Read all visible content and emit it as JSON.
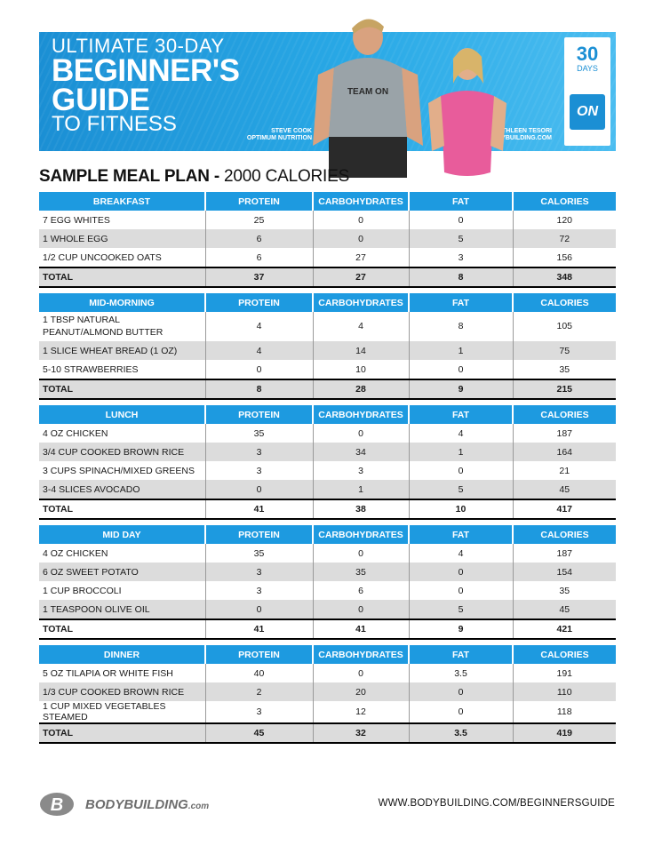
{
  "banner": {
    "title_line1": "ULTIMATE 30-DAY",
    "title_line2": "BEGINNER'S",
    "title_line3": "GUIDE",
    "title_line4": "TO FITNESS",
    "person1_name": "STEVE COOK",
    "person1_org": "OPTIMUM NUTRITION",
    "person2_name": "KATHLEEN TESORI",
    "person2_org": "BODYBUILDING.COM",
    "shirt_text": "TEAM ON",
    "badge_number": "30",
    "badge_label": "DAYS",
    "badge_logo": "ON"
  },
  "plan": {
    "title": "SAMPLE MEAL PLAN -",
    "subtitle": "2000 CALORIES"
  },
  "columns": [
    "PROTEIN",
    "CARBOHYDRATES",
    "FAT",
    "CALORIES"
  ],
  "meals": [
    {
      "name": "BREAKFAST",
      "items": [
        {
          "food": "7 EGG WHITES",
          "protein": "25",
          "carbs": "0",
          "fat": "0",
          "calories": "120"
        },
        {
          "food": "1 WHOLE EGG",
          "protein": "6",
          "carbs": "0",
          "fat": "5",
          "calories": "72"
        },
        {
          "food": "1/2 CUP UNCOOKED OATS",
          "protein": "6",
          "carbs": "27",
          "fat": "3",
          "calories": "156"
        }
      ],
      "total": {
        "label": "TOTAL",
        "protein": "37",
        "carbs": "27",
        "fat": "8",
        "calories": "348"
      }
    },
    {
      "name": "MID-MORNING",
      "items": [
        {
          "food": "1 TBSP NATURAL PEANUT/ALMOND BUTTER",
          "protein": "4",
          "carbs": "4",
          "fat": "8",
          "calories": "105"
        },
        {
          "food": "1 SLICE WHEAT BREAD (1 OZ)",
          "protein": "4",
          "carbs": "14",
          "fat": "1",
          "calories": "75"
        },
        {
          "food": "5-10 STRAWBERRIES",
          "protein": "0",
          "carbs": "10",
          "fat": "0",
          "calories": "35"
        }
      ],
      "total": {
        "label": "TOTAL",
        "protein": "8",
        "carbs": "28",
        "fat": "9",
        "calories": "215"
      }
    },
    {
      "name": "LUNCH",
      "items": [
        {
          "food": "4 OZ CHICKEN",
          "protein": "35",
          "carbs": "0",
          "fat": "4",
          "calories": "187"
        },
        {
          "food": "3/4 CUP COOKED BROWN RICE",
          "protein": "3",
          "carbs": "34",
          "fat": "1",
          "calories": "164"
        },
        {
          "food": "3 CUPS SPINACH/MIXED GREENS",
          "protein": "3",
          "carbs": "3",
          "fat": "0",
          "calories": "21"
        },
        {
          "food": "3-4 SLICES AVOCADO",
          "protein": "0",
          "carbs": "1",
          "fat": "5",
          "calories": "45"
        }
      ],
      "total": {
        "label": "TOTAL",
        "protein": "41",
        "carbs": "38",
        "fat": "10",
        "calories": "417"
      }
    },
    {
      "name": "MID DAY",
      "items": [
        {
          "food": "4 OZ CHICKEN",
          "protein": "35",
          "carbs": "0",
          "fat": "4",
          "calories": "187"
        },
        {
          "food": "6 OZ  SWEET POTATO",
          "protein": "3",
          "carbs": "35",
          "fat": "0",
          "calories": "154"
        },
        {
          "food": "1 CUP BROCCOLI",
          "protein": "3",
          "carbs": "6",
          "fat": "0",
          "calories": "35"
        },
        {
          "food": "1 TEASPOON OLIVE OIL",
          "protein": "0",
          "carbs": "0",
          "fat": "5",
          "calories": "45"
        }
      ],
      "total": {
        "label": "TOTAL",
        "protein": "41",
        "carbs": "41",
        "fat": "9",
        "calories": "421"
      }
    },
    {
      "name": "DINNER",
      "items": [
        {
          "food": "5 OZ TILAPIA OR WHITE FISH",
          "protein": "40",
          "carbs": "0",
          "fat": "3.5",
          "calories": "191"
        },
        {
          "food": "1/3 CUP COOKED BROWN RICE",
          "protein": "2",
          "carbs": "20",
          "fat": "0",
          "calories": "110"
        },
        {
          "food": "1 CUP MIXED VEGETABLES STEAMED",
          "protein": "3",
          "carbs": "12",
          "fat": "0",
          "calories": "118"
        }
      ],
      "total": {
        "label": "TOTAL",
        "protein": "45",
        "carbs": "32",
        "fat": "3.5",
        "calories": "419"
      }
    }
  ],
  "footer": {
    "logo_text": "BODYBUILDING",
    "logo_suffix": ".com",
    "url": "WWW.BODYBUILDING.COM/BEGINNERSGUIDE"
  },
  "colors": {
    "accent_blue": "#1d9ae0",
    "stripe_gray": "#dcdcdc"
  }
}
